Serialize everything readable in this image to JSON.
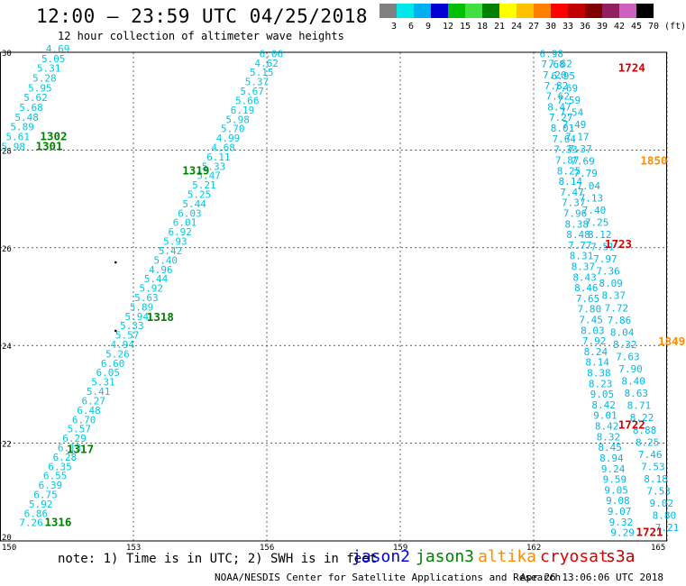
{
  "title": "12:00 — 23:59 UTC 04/25/2018",
  "subtitle": "12 hour collection of altimeter wave heights",
  "legend": {
    "colors": [
      "#808080",
      "#00e8e8",
      "#00b0f0",
      "#0000d0",
      "#00c000",
      "#40e040",
      "#008000",
      "#ffff00",
      "#ffc000",
      "#ff8000",
      "#ff0000",
      "#c00000",
      "#800000",
      "#902060",
      "#d060c0",
      "#000000"
    ],
    "labels": [
      "3",
      "6",
      "9",
      "12",
      "15",
      "18",
      "21",
      "24",
      "27",
      "30",
      "33",
      "36",
      "39",
      "42",
      "45",
      "70 (ft)"
    ]
  },
  "map": {
    "x_ticks": [
      "150",
      "153",
      "156",
      "159",
      "162",
      "165"
    ],
    "y_ticks": [
      "30",
      "28",
      "26",
      "24",
      "22",
      "20"
    ],
    "x_range": [
      150,
      165
    ],
    "y_range": [
      20,
      30
    ]
  },
  "tracks": [
    {
      "sat": "jason3",
      "color": "#00c8e0",
      "labels": [
        "4.69",
        "5.05",
        "5.31",
        "5.28",
        "5.95",
        "5.62",
        "5.68",
        "5.48",
        "5.89",
        "5.61",
        "5.98"
      ],
      "start": [
        151.3,
        30.0
      ],
      "end": [
        150.3,
        28.0
      ]
    },
    {
      "sat": "jason3",
      "color": "#00c8e0",
      "labels": [
        "6.06",
        "4.62",
        "5.15",
        "5.37",
        "5.67",
        "5.66",
        "6.19",
        "5.98",
        "5.70",
        "4.99",
        "4.68",
        "6.11",
        "5.33",
        "5.47",
        "5.21",
        "5.25",
        "5.44",
        "6.03",
        "6.01",
        "6.92",
        "5.93",
        "5.42",
        "5.40",
        "4.96",
        "5.44",
        "5.92",
        "5.63",
        "5.89",
        "5.94",
        "5.33",
        "5.57",
        "4.94",
        "5.26",
        "6.60",
        "6.05",
        "5.31",
        "5.41",
        "6.27",
        "6.48",
        "6.70",
        "5.57",
        "6.29",
        "6.13",
        "6.28",
        "6.35",
        "6.55",
        "6.39",
        "6.75",
        "5.92",
        "6.86",
        "7.26"
      ],
      "start": [
        156.1,
        29.9
      ],
      "end": [
        150.7,
        20.3
      ]
    },
    {
      "sat": "jason2",
      "color": "#00b8e8",
      "labels": [
        "6.98",
        "7.68",
        "7.20",
        "7.82",
        "7.62",
        "8.47",
        "7.27",
        "8.01",
        "7.64",
        "7.33",
        "7.87",
        "8.25",
        "8.14",
        "7.47",
        "7.37",
        "7.96",
        "8.38",
        "8.48",
        "7.77",
        "8.31",
        "8.37",
        "8.43",
        "8.46",
        "7.65",
        "7.80",
        "7.45",
        "8.03",
        "7.92",
        "8.24",
        "8.14",
        "8.38",
        "8.23",
        "9.05",
        "8.42",
        "9.01",
        "8.42",
        "8.32",
        "8.45",
        "8.94",
        "9.24",
        "9.59",
        "9.05",
        "9.08",
        "9.07",
        "9.32",
        "9.29"
      ],
      "start": [
        162.4,
        29.9
      ],
      "end": [
        164.0,
        20.1
      ]
    },
    {
      "sat": "jason2",
      "color": "#00b8e8",
      "labels": [
        "7.62",
        "6.95",
        "7.69",
        "7.59",
        "7.54",
        "7.49",
        "7.17",
        "7.37",
        "7.69",
        "7.79",
        "7.04",
        "7.13",
        "7.40",
        "7.25",
        "8.12",
        "7.51",
        "7.97",
        "7.36",
        "8.09",
        "8.37",
        "7.72",
        "7.86",
        "8.04",
        "8.32",
        "7.63",
        "7.90",
        "8.40",
        "8.63",
        "8.71",
        "8.22",
        "8.88",
        "8.25",
        "7.46",
        "7.53",
        "8.18",
        "7.53",
        "9.02",
        "8.80",
        "7.21"
      ],
      "start": [
        162.6,
        29.7
      ],
      "end": [
        165.0,
        20.2
      ]
    }
  ],
  "pass_labels": [
    {
      "text": "1302",
      "color": "#008000",
      "lon": 150.9,
      "lat": 28.2
    },
    {
      "text": "1301",
      "color": "#008000",
      "lon": 150.8,
      "lat": 28.0
    },
    {
      "text": "1319",
      "color": "#008000",
      "lon": 154.1,
      "lat": 27.5
    },
    {
      "text": "1318",
      "color": "#008000",
      "lon": 153.3,
      "lat": 24.5
    },
    {
      "text": "1317",
      "color": "#008000",
      "lon": 151.5,
      "lat": 21.8
    },
    {
      "text": "1316",
      "color": "#008000",
      "lon": 151.0,
      "lat": 20.3
    },
    {
      "text": "1724",
      "color": "#d00000",
      "lon": 163.9,
      "lat": 29.6
    },
    {
      "text": "1723",
      "color": "#d00000",
      "lon": 163.6,
      "lat": 26.0
    },
    {
      "text": "1722",
      "color": "#d00000",
      "lon": 163.9,
      "lat": 22.3
    },
    {
      "text": "1721",
      "color": "#d00000",
      "lon": 164.3,
      "lat": 20.1
    },
    {
      "text": "1850",
      "color": "#ff8c00",
      "lon": 164.4,
      "lat": 27.7
    },
    {
      "text": "1849",
      "color": "#ff8c00",
      "lon": 164.8,
      "lat": 24.0
    }
  ],
  "footer": {
    "note": "note: 1) Time is in UTC; 2) SWH is in feet",
    "satellites": [
      {
        "name": "jason2",
        "color": "#0000e0"
      },
      {
        "name": "jason3",
        "color": "#008000"
      },
      {
        "name": "altika",
        "color": "#ff8c00"
      },
      {
        "name": "cryosat",
        "color": "#e00000"
      },
      {
        "name": "s3a",
        "color": "#c00000"
      }
    ],
    "credit": "NOAA/NESDIS Center for Satellite Applications and Research",
    "timestamp": "Apr 26 13:06:06 UTC 2018"
  }
}
